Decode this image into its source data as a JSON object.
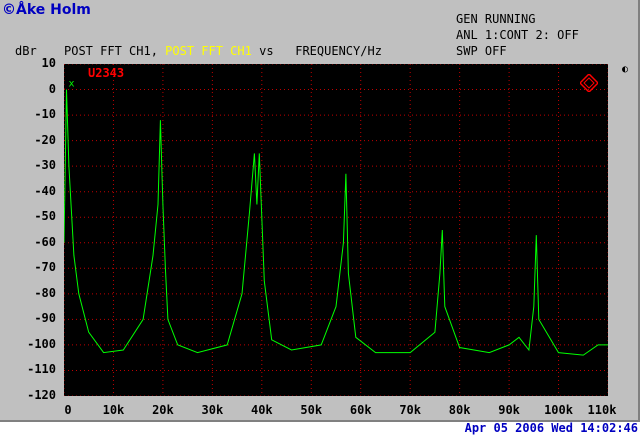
{
  "copyright": "©Åke Holm",
  "status": {
    "line1": "GEN RUNNING",
    "line2": "ANL 1:CONT 2: OFF",
    "line3": "SWP OFF"
  },
  "header": {
    "unit": "dBr",
    "title_part1": "POST FFT CH1,",
    "title_part2": "POST FFT CH1",
    "title_part3": "vs",
    "title_part4": "FREQUENCY/Hz"
  },
  "marker_label": "U2343",
  "marker_symbol": "x",
  "side_icon": "◐",
  "datetime": "Apr 05 2006 Wed 14:02:46",
  "colors": {
    "trace": "#00ff00",
    "grid": "#c00000",
    "plot_bg": "#000000",
    "frame_bg": "#c0c0c0",
    "accent_text": "#0000c0",
    "highlight": "#ffff00"
  },
  "chart_data": {
    "type": "line",
    "xlabel": "FREQUENCY/Hz",
    "ylabel": "dBr",
    "xlim": [
      0,
      110000
    ],
    "ylim": [
      -120,
      10
    ],
    "grid": true,
    "x_ticks": [
      "0",
      "10k",
      "20k",
      "30k",
      "40k",
      "50k",
      "60k",
      "70k",
      "80k",
      "90k",
      "100k",
      "110k"
    ],
    "y_ticks": [
      "10",
      "0",
      "-10",
      "-20",
      "-30",
      "-40",
      "-50",
      "-60",
      "-70",
      "-80",
      "-90",
      "-100",
      "-110",
      "-120"
    ],
    "series": [
      {
        "name": "POST FFT CH1",
        "x": [
          0,
          500,
          1000,
          2000,
          3000,
          5000,
          8000,
          12000,
          16000,
          18000,
          19000,
          19500,
          20000,
          20500,
          21000,
          23000,
          27000,
          33000,
          36000,
          37500,
          38500,
          39000,
          39500,
          40500,
          42000,
          46000,
          52000,
          55000,
          56500,
          57000,
          57500,
          59000,
          63000,
          70000,
          75000,
          76000,
          76500,
          77000,
          80000,
          86000,
          90000,
          92000,
          94000,
          95000,
          95500,
          96000,
          100000,
          105000,
          108000,
          110000
        ],
        "y": [
          -60,
          0,
          -30,
          -65,
          -80,
          -95,
          -103,
          -102,
          -90,
          -65,
          -45,
          -12,
          -45,
          -70,
          -90,
          -100,
          -103,
          -100,
          -80,
          -48,
          -25,
          -45,
          -25,
          -75,
          -98,
          -102,
          -100,
          -85,
          -60,
          -33,
          -72,
          -97,
          -103,
          -103,
          -95,
          -72,
          -55,
          -85,
          -101,
          -103,
          -100,
          -97,
          -102,
          -85,
          -57,
          -90,
          -103,
          -104,
          -100,
          -100
        ]
      }
    ]
  }
}
